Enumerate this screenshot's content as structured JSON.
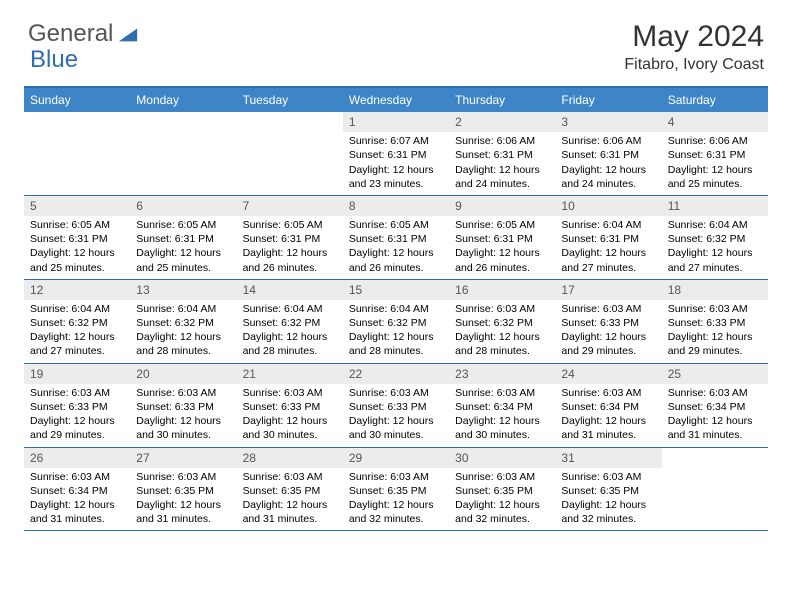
{
  "logo": {
    "word1": "General",
    "word2": "Blue",
    "icon_color": "#2f6fae"
  },
  "title": "May 2024",
  "location": "Fitabro, Ivory Coast",
  "colors": {
    "header_bg": "#3d85c6",
    "border": "#2f6fae",
    "daynum_bg": "#ececec",
    "body_bg": "#ffffff",
    "text": "#000000"
  },
  "fonts": {
    "title_size": 30,
    "location_size": 16,
    "weekday_size": 12,
    "body_size": 10.5
  },
  "weekdays": [
    "Sunday",
    "Monday",
    "Tuesday",
    "Wednesday",
    "Thursday",
    "Friday",
    "Saturday"
  ],
  "weeks": [
    [
      {
        "day": "",
        "empty": true
      },
      {
        "day": "",
        "empty": true
      },
      {
        "day": "",
        "empty": true
      },
      {
        "day": "1",
        "sunrise": "Sunrise: 6:07 AM",
        "sunset": "Sunset: 6:31 PM",
        "daylight": "Daylight: 12 hours and 23 minutes."
      },
      {
        "day": "2",
        "sunrise": "Sunrise: 6:06 AM",
        "sunset": "Sunset: 6:31 PM",
        "daylight": "Daylight: 12 hours and 24 minutes."
      },
      {
        "day": "3",
        "sunrise": "Sunrise: 6:06 AM",
        "sunset": "Sunset: 6:31 PM",
        "daylight": "Daylight: 12 hours and 24 minutes."
      },
      {
        "day": "4",
        "sunrise": "Sunrise: 6:06 AM",
        "sunset": "Sunset: 6:31 PM",
        "daylight": "Daylight: 12 hours and 25 minutes."
      }
    ],
    [
      {
        "day": "5",
        "sunrise": "Sunrise: 6:05 AM",
        "sunset": "Sunset: 6:31 PM",
        "daylight": "Daylight: 12 hours and 25 minutes."
      },
      {
        "day": "6",
        "sunrise": "Sunrise: 6:05 AM",
        "sunset": "Sunset: 6:31 PM",
        "daylight": "Daylight: 12 hours and 25 minutes."
      },
      {
        "day": "7",
        "sunrise": "Sunrise: 6:05 AM",
        "sunset": "Sunset: 6:31 PM",
        "daylight": "Daylight: 12 hours and 26 minutes."
      },
      {
        "day": "8",
        "sunrise": "Sunrise: 6:05 AM",
        "sunset": "Sunset: 6:31 PM",
        "daylight": "Daylight: 12 hours and 26 minutes."
      },
      {
        "day": "9",
        "sunrise": "Sunrise: 6:05 AM",
        "sunset": "Sunset: 6:31 PM",
        "daylight": "Daylight: 12 hours and 26 minutes."
      },
      {
        "day": "10",
        "sunrise": "Sunrise: 6:04 AM",
        "sunset": "Sunset: 6:31 PM",
        "daylight": "Daylight: 12 hours and 27 minutes."
      },
      {
        "day": "11",
        "sunrise": "Sunrise: 6:04 AM",
        "sunset": "Sunset: 6:32 PM",
        "daylight": "Daylight: 12 hours and 27 minutes."
      }
    ],
    [
      {
        "day": "12",
        "sunrise": "Sunrise: 6:04 AM",
        "sunset": "Sunset: 6:32 PM",
        "daylight": "Daylight: 12 hours and 27 minutes."
      },
      {
        "day": "13",
        "sunrise": "Sunrise: 6:04 AM",
        "sunset": "Sunset: 6:32 PM",
        "daylight": "Daylight: 12 hours and 28 minutes."
      },
      {
        "day": "14",
        "sunrise": "Sunrise: 6:04 AM",
        "sunset": "Sunset: 6:32 PM",
        "daylight": "Daylight: 12 hours and 28 minutes."
      },
      {
        "day": "15",
        "sunrise": "Sunrise: 6:04 AM",
        "sunset": "Sunset: 6:32 PM",
        "daylight": "Daylight: 12 hours and 28 minutes."
      },
      {
        "day": "16",
        "sunrise": "Sunrise: 6:03 AM",
        "sunset": "Sunset: 6:32 PM",
        "daylight": "Daylight: 12 hours and 28 minutes."
      },
      {
        "day": "17",
        "sunrise": "Sunrise: 6:03 AM",
        "sunset": "Sunset: 6:33 PM",
        "daylight": "Daylight: 12 hours and 29 minutes."
      },
      {
        "day": "18",
        "sunrise": "Sunrise: 6:03 AM",
        "sunset": "Sunset: 6:33 PM",
        "daylight": "Daylight: 12 hours and 29 minutes."
      }
    ],
    [
      {
        "day": "19",
        "sunrise": "Sunrise: 6:03 AM",
        "sunset": "Sunset: 6:33 PM",
        "daylight": "Daylight: 12 hours and 29 minutes."
      },
      {
        "day": "20",
        "sunrise": "Sunrise: 6:03 AM",
        "sunset": "Sunset: 6:33 PM",
        "daylight": "Daylight: 12 hours and 30 minutes."
      },
      {
        "day": "21",
        "sunrise": "Sunrise: 6:03 AM",
        "sunset": "Sunset: 6:33 PM",
        "daylight": "Daylight: 12 hours and 30 minutes."
      },
      {
        "day": "22",
        "sunrise": "Sunrise: 6:03 AM",
        "sunset": "Sunset: 6:33 PM",
        "daylight": "Daylight: 12 hours and 30 minutes."
      },
      {
        "day": "23",
        "sunrise": "Sunrise: 6:03 AM",
        "sunset": "Sunset: 6:34 PM",
        "daylight": "Daylight: 12 hours and 30 minutes."
      },
      {
        "day": "24",
        "sunrise": "Sunrise: 6:03 AM",
        "sunset": "Sunset: 6:34 PM",
        "daylight": "Daylight: 12 hours and 31 minutes."
      },
      {
        "day": "25",
        "sunrise": "Sunrise: 6:03 AM",
        "sunset": "Sunset: 6:34 PM",
        "daylight": "Daylight: 12 hours and 31 minutes."
      }
    ],
    [
      {
        "day": "26",
        "sunrise": "Sunrise: 6:03 AM",
        "sunset": "Sunset: 6:34 PM",
        "daylight": "Daylight: 12 hours and 31 minutes."
      },
      {
        "day": "27",
        "sunrise": "Sunrise: 6:03 AM",
        "sunset": "Sunset: 6:35 PM",
        "daylight": "Daylight: 12 hours and 31 minutes."
      },
      {
        "day": "28",
        "sunrise": "Sunrise: 6:03 AM",
        "sunset": "Sunset: 6:35 PM",
        "daylight": "Daylight: 12 hours and 31 minutes."
      },
      {
        "day": "29",
        "sunrise": "Sunrise: 6:03 AM",
        "sunset": "Sunset: 6:35 PM",
        "daylight": "Daylight: 12 hours and 32 minutes."
      },
      {
        "day": "30",
        "sunrise": "Sunrise: 6:03 AM",
        "sunset": "Sunset: 6:35 PM",
        "daylight": "Daylight: 12 hours and 32 minutes."
      },
      {
        "day": "31",
        "sunrise": "Sunrise: 6:03 AM",
        "sunset": "Sunset: 6:35 PM",
        "daylight": "Daylight: 12 hours and 32 minutes."
      },
      {
        "day": "",
        "empty": true
      }
    ]
  ]
}
